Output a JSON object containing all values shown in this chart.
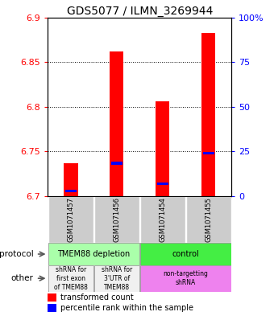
{
  "title": "GDS5077 / ILMN_3269944",
  "samples": [
    "GSM1071457",
    "GSM1071456",
    "GSM1071454",
    "GSM1071455"
  ],
  "red_values": [
    6.737,
    6.862,
    6.806,
    6.883
  ],
  "blue_values": [
    6.706,
    6.737,
    6.714,
    6.748
  ],
  "ylim": [
    6.7,
    6.9
  ],
  "yticks_left": [
    6.7,
    6.75,
    6.8,
    6.85,
    6.9
  ],
  "yticks_right": [
    0,
    25,
    50,
    75,
    100
  ],
  "ylabel_right_labels": [
    "0",
    "25",
    "50",
    "75",
    "100%"
  ],
  "base_value": 6.7,
  "grid_lines": [
    6.75,
    6.8,
    6.85
  ],
  "protocol_row": [
    {
      "label": "TMEM88 depletion",
      "color": "#aaffaa",
      "span": [
        0,
        2
      ]
    },
    {
      "label": "control",
      "color": "#44ee44",
      "span": [
        2,
        4
      ]
    }
  ],
  "other_row": [
    {
      "label": "shRNA for\nfirst exon\nof TMEM88",
      "color": "#f0f0f0",
      "span": [
        0,
        1
      ]
    },
    {
      "label": "shRNA for\n3'UTR of\nTMEM88",
      "color": "#f0f0f0",
      "span": [
        1,
        2
      ]
    },
    {
      "label": "non-targetting\nshRNA",
      "color": "#ee82ee",
      "span": [
        2,
        4
      ]
    }
  ],
  "legend_red": "transformed count",
  "legend_blue": "percentile rank within the sample",
  "bar_width": 0.3,
  "blue_bar_width": 0.25,
  "blue_bar_height": 0.003
}
